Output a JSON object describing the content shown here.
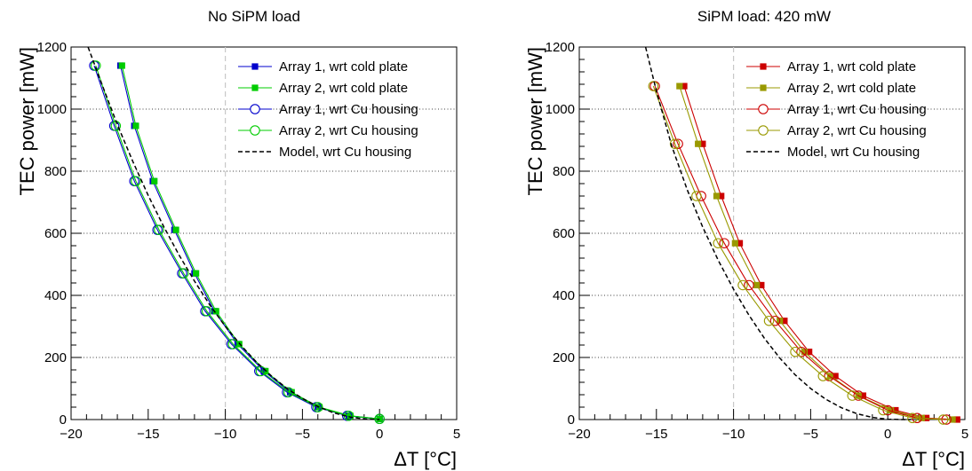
{
  "chart_data": [
    {
      "type": "line",
      "title": "No SiPM load",
      "xlabel": "ΔT [°C]",
      "ylabel": "TEC power [mW]",
      "xlim": [
        -20,
        5
      ],
      "ylim": [
        0,
        1200
      ],
      "xticks": [
        -20,
        -15,
        -10,
        -5,
        0,
        5
      ],
      "yticks": [
        0,
        200,
        400,
        600,
        800,
        1000,
        1200
      ],
      "grid": "y-dotted",
      "vline": -10,
      "legend_position": "top-right",
      "series": [
        {
          "name": "Array 1, wrt cold plate",
          "color": "#0000cc",
          "marker": "square",
          "x": [
            -16.8,
            -15.9,
            -14.7,
            -13.3,
            -12.0,
            -10.7,
            -9.2,
            -7.5,
            -5.8,
            -4.0,
            -2.0,
            0.0
          ],
          "y": [
            1140,
            946,
            768,
            611,
            471,
            349,
            243,
            156,
            88,
            40,
            12,
            2
          ]
        },
        {
          "name": "Array 2, wrt cold plate",
          "color": "#00cc00",
          "marker": "square",
          "x": [
            -16.7,
            -15.8,
            -14.6,
            -13.2,
            -11.9,
            -10.6,
            -9.1,
            -7.4,
            -5.7,
            -3.9,
            -1.9,
            0.0
          ],
          "y": [
            1140,
            946,
            768,
            611,
            471,
            349,
            243,
            156,
            88,
            40,
            12,
            2
          ]
        },
        {
          "name": "Array 1, wrt Cu housing",
          "color": "#0000cc",
          "marker": "circle-open",
          "x": [
            -18.5,
            -17.2,
            -15.9,
            -14.4,
            -12.8,
            -11.3,
            -9.6,
            -7.8,
            -6.0,
            -4.1,
            -2.1,
            0.0
          ],
          "y": [
            1140,
            946,
            768,
            611,
            471,
            349,
            243,
            156,
            88,
            40,
            12,
            2
          ]
        },
        {
          "name": "Array 2, wrt Cu housing",
          "color": "#00cc00",
          "marker": "circle-open",
          "x": [
            -18.4,
            -17.1,
            -15.8,
            -14.3,
            -12.7,
            -11.2,
            -9.5,
            -7.7,
            -5.9,
            -4.0,
            -2.0,
            0.0
          ],
          "y": [
            1140,
            946,
            768,
            611,
            471,
            349,
            243,
            156,
            88,
            40,
            12,
            2
          ]
        },
        {
          "name": "Model, wrt Cu housing",
          "color": "#000000",
          "style": "dashed",
          "x": [
            -18.9,
            -18.0,
            -17.0,
            -16.0,
            -15.0,
            -14.0,
            -13.0,
            -12.0,
            -11.0,
            -10.0,
            -9.0,
            -8.0,
            -7.0,
            -6.0,
            -5.0,
            -4.0,
            -3.0,
            -2.0,
            -1.0,
            0.0
          ],
          "y": [
            1200,
            1080,
            950,
            832,
            722,
            622,
            530,
            446,
            369,
            300,
            240,
            186,
            140,
            100,
            68,
            42,
            22,
            9,
            2,
            0
          ]
        }
      ]
    },
    {
      "type": "line",
      "title": "SiPM load: 420 mW",
      "xlabel": "ΔT [°C]",
      "ylabel": "TEC power [mW]",
      "xlim": [
        -20,
        5
      ],
      "ylim": [
        0,
        1200
      ],
      "xticks": [
        -20,
        -15,
        -10,
        -5,
        0,
        5
      ],
      "yticks": [
        0,
        200,
        400,
        600,
        800,
        1000,
        1200
      ],
      "grid": "y-dotted",
      "vline": -10,
      "legend_position": "top-right",
      "series": [
        {
          "name": "Array 1, wrt cold plate",
          "color": "#cc0000",
          "marker": "square",
          "x": [
            -13.2,
            -12.0,
            -10.8,
            -9.6,
            -8.2,
            -6.7,
            -5.1,
            -3.4,
            -1.6,
            0.5,
            2.5,
            4.5
          ],
          "y": [
            1074,
            888,
            720,
            568,
            433,
            318,
            218,
            140,
            77,
            30,
            5,
            0
          ]
        },
        {
          "name": "Array 2, wrt cold plate",
          "color": "#999900",
          "marker": "square",
          "x": [
            -13.5,
            -12.3,
            -11.1,
            -9.9,
            -8.5,
            -7.0,
            -5.4,
            -3.7,
            -1.9,
            0.2,
            2.2,
            4.2
          ],
          "y": [
            1074,
            888,
            720,
            568,
            433,
            318,
            218,
            140,
            77,
            30,
            5,
            0
          ]
        },
        {
          "name": "Array 1, wrt Cu housing",
          "color": "#cc0000",
          "marker": "circle-open",
          "x": [
            -15.1,
            -13.6,
            -12.1,
            -10.6,
            -9.0,
            -7.3,
            -5.6,
            -3.8,
            -1.9,
            0.0,
            1.9,
            3.8
          ],
          "y": [
            1074,
            888,
            720,
            568,
            433,
            318,
            218,
            140,
            77,
            30,
            5,
            0
          ]
        },
        {
          "name": "Array 2, wrt Cu housing",
          "color": "#999900",
          "marker": "circle-open",
          "x": [
            -15.2,
            -13.8,
            -12.4,
            -11.0,
            -9.4,
            -7.7,
            -6.0,
            -4.2,
            -2.3,
            -0.3,
            1.6,
            3.6
          ],
          "y": [
            1074,
            888,
            720,
            568,
            433,
            318,
            218,
            140,
            77,
            30,
            5,
            0
          ]
        },
        {
          "name": "Model, wrt Cu housing",
          "color": "#000000",
          "style": "dashed",
          "x": [
            -15.7,
            -15.0,
            -14.0,
            -13.0,
            -12.0,
            -11.0,
            -10.0,
            -9.0,
            -8.0,
            -7.0,
            -6.0,
            -5.0,
            -4.0,
            -3.0,
            -2.0,
            -1.0,
            0.0,
            1.0,
            1.5
          ],
          "y": [
            1200,
            1058,
            880,
            740,
            620,
            514,
            420,
            336,
            262,
            198,
            144,
            100,
            65,
            38,
            19,
            7,
            1,
            0,
            0
          ]
        }
      ]
    }
  ]
}
